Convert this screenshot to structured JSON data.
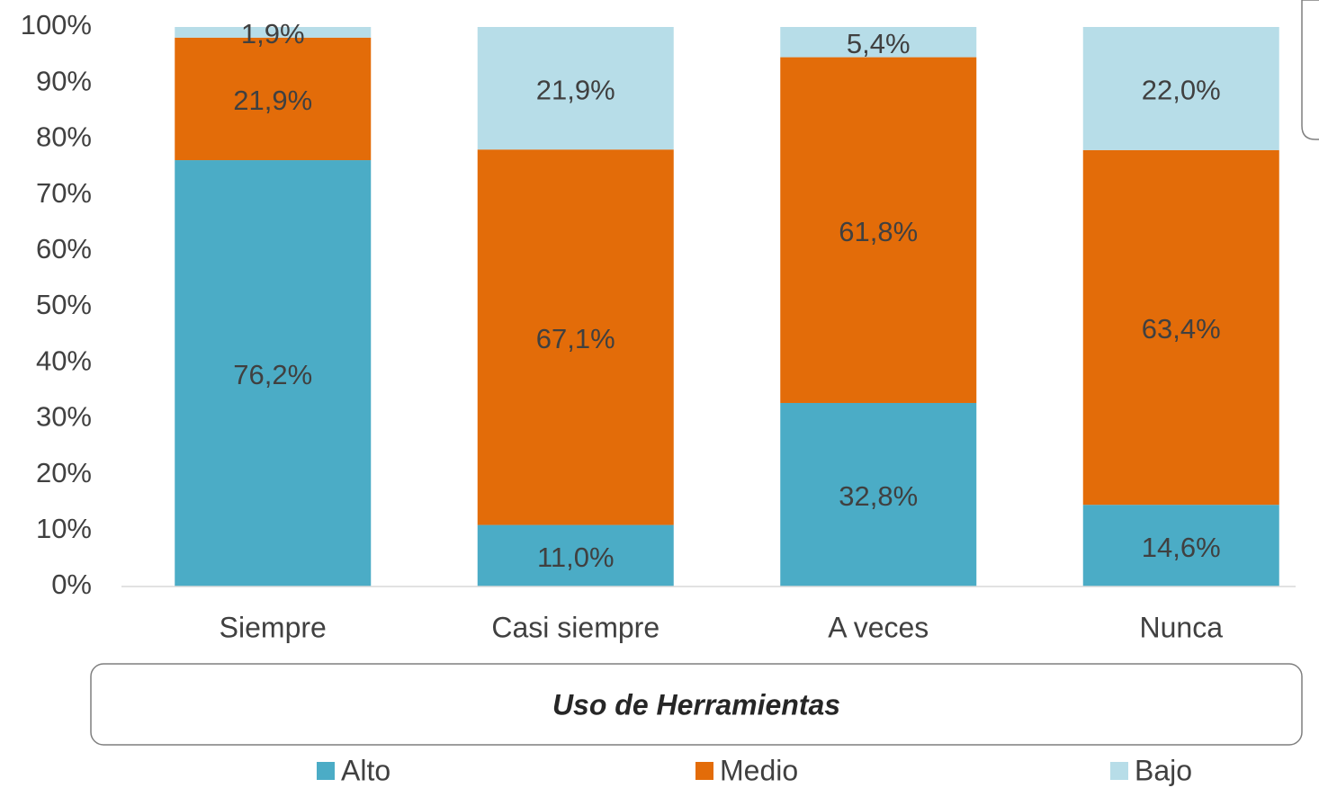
{
  "chart_data": {
    "type": "stacked_bar",
    "x_label": "Uso de Herramientas",
    "categories": [
      "Siempre",
      "Casi siempre",
      "A veces",
      "Nunca"
    ],
    "series": [
      {
        "name": "Alto",
        "color": "#4BACC6",
        "values": [
          76.2,
          11.0,
          32.8,
          14.6
        ],
        "value_labels": [
          "76,2%",
          "11,0%",
          "32,8%",
          "14,6%"
        ]
      },
      {
        "name": "Medio",
        "color": "#E36C09",
        "values": [
          21.9,
          67.1,
          61.8,
          63.4
        ],
        "value_labels": [
          "21,9%",
          "67,1%",
          "61,8%",
          "63,4%"
        ]
      },
      {
        "name": "Bajo",
        "color": "#B7DDE8",
        "values": [
          1.9,
          21.9,
          5.4,
          22.0
        ],
        "value_labels": [
          "1,9%",
          "21,9%",
          "5,4%",
          "22,0%"
        ]
      }
    ],
    "ylim": [
      0,
      100
    ],
    "yticks": [
      {
        "value": 0,
        "label": "0%"
      },
      {
        "value": 10,
        "label": "10%"
      },
      {
        "value": 20,
        "label": "20%"
      },
      {
        "value": 30,
        "label": "30%"
      },
      {
        "value": 40,
        "label": "40%"
      },
      {
        "value": 50,
        "label": "50%"
      },
      {
        "value": 60,
        "label": "60%"
      },
      {
        "value": 70,
        "label": "70%"
      },
      {
        "value": 80,
        "label": "80%"
      },
      {
        "value": 90,
        "label": "90%"
      },
      {
        "value": 100,
        "label": "100%"
      }
    ],
    "legend": "bottom"
  }
}
